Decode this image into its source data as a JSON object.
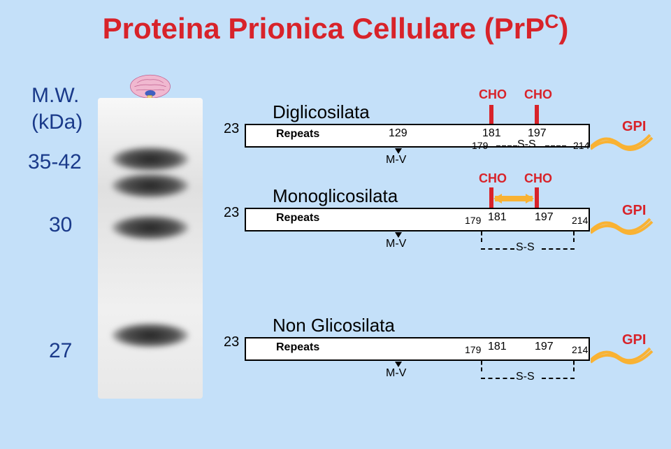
{
  "title_html": "Proteina Prionica Cellulare (PrP<sup>C</sup>)",
  "mw_header": "M.W.",
  "mw_unit": "(kDa)",
  "mw_values": [
    "35-42",
    "30",
    "27"
  ],
  "forms": {
    "di": {
      "label": "Diglicosilata",
      "left_num": "23",
      "repeats": "Repeats",
      "pos129": "129",
      "mv": "M-V",
      "pos179": "179",
      "pos181": "181",
      "pos197": "197",
      "pos214": "214",
      "cho1": "CHO",
      "cho2": "CHO",
      "ss": "S-S",
      "gpi": "GPI"
    },
    "mono": {
      "label": "Monoglicosilata",
      "left_num": "23",
      "repeats": "Repeats",
      "mv": "M-V",
      "pos179": "179",
      "pos181": "181",
      "pos197": "197",
      "pos214": "214",
      "cho1": "CHO",
      "cho2": "CHO",
      "ss": "S-S",
      "gpi": "GPI"
    },
    "non": {
      "label": "Non Glicosilata",
      "left_num": "23",
      "repeats": "Repeats",
      "mv": "M-V",
      "pos179": "179",
      "pos181": "181",
      "pos197": "197",
      "pos214": "214",
      "ss": "S-S",
      "gpi": "GPI"
    }
  },
  "colors": {
    "bg": "#c4e0f9",
    "title": "#d8232a",
    "text_blue": "#1a3a8a",
    "red": "#d8232a",
    "wave": "#f9b233"
  },
  "gel": {
    "band_top_offsets": [
      70,
      110,
      170,
      320
    ],
    "band_widths": [
      110,
      110,
      110,
      110
    ]
  }
}
